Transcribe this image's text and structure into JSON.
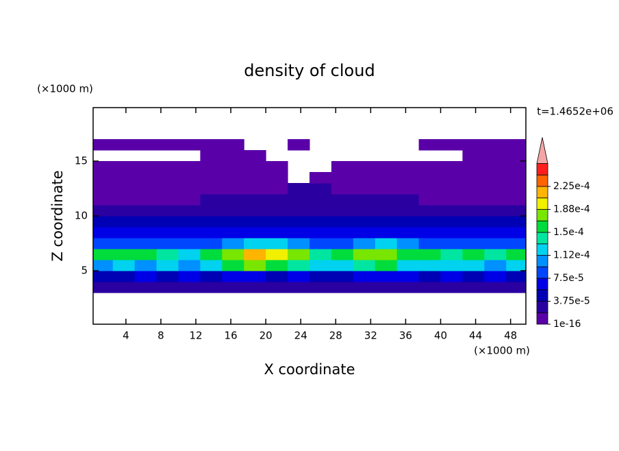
{
  "chart_data": {
    "type": "contour",
    "title": "density of cloud",
    "x_label": "X coordinate",
    "y_label": "Z coordinate",
    "x_unit": "(×1000 m)",
    "y_unit": "(×1000 m)",
    "annotation": "t=1.4652e+06",
    "xlim": [
      0.25,
      49.75
    ],
    "ylim": [
      0.125,
      19.875
    ],
    "xticks": [
      4,
      8,
      12,
      16,
      20,
      24,
      28,
      32,
      36,
      40,
      44,
      48
    ],
    "yticks": [
      5,
      10,
      15
    ],
    "x": [
      1.25,
      3.75,
      6.25,
      8.75,
      11.25,
      13.75,
      16.25,
      18.75,
      21.25,
      23.75,
      26.25,
      28.75,
      31.25,
      33.75,
      36.25,
      38.75,
      41.25,
      43.75,
      46.25,
      48.75
    ],
    "z": [
      3.5,
      4.5,
      5.5,
      6.5,
      7.5,
      8.5,
      9.5,
      10.5,
      11.5,
      12.5,
      13.5,
      14.5,
      15.5,
      16.5
    ],
    "values": [
      [
        2e-05,
        2e-05,
        2e-05,
        2e-05,
        2e-05,
        2e-05,
        2e-05,
        2e-05,
        2e-05,
        2e-05,
        2e-05,
        2e-05,
        2e-05,
        3e-05,
        2e-05,
        2e-05,
        2e-05,
        2e-05,
        2e-05,
        2e-05
      ],
      [
        5e-05,
        5e-05,
        6e-05,
        5e-05,
        6e-05,
        5e-05,
        6e-05,
        6e-05,
        5e-05,
        6e-05,
        5e-05,
        5e-05,
        6e-05,
        7e-05,
        6e-05,
        5e-05,
        6e-05,
        5e-05,
        6e-05,
        5e-05
      ],
      [
        0.00011,
        0.00012,
        0.00011,
        0.00012,
        0.00011,
        0.00013,
        0.00015,
        0.00017,
        0.00016,
        0.00014,
        0.00012,
        0.00013,
        0.00014,
        0.00015,
        0.00013,
        0.00012,
        0.00013,
        0.00012,
        0.00011,
        0.00012
      ],
      [
        0.00015,
        0.00016,
        0.00015,
        0.00014,
        0.00013,
        0.00015,
        0.00018,
        0.00021,
        0.0002,
        0.00017,
        0.00014,
        0.00016,
        0.00017,
        0.00018,
        0.00016,
        0.00015,
        0.00014,
        0.00015,
        0.00014,
        0.00015
      ],
      [
        9e-05,
        8e-05,
        9e-05,
        8e-05,
        8e-05,
        9e-05,
        0.0001,
        0.00012,
        0.00012,
        0.00011,
        8e-05,
        9e-05,
        0.00011,
        0.00012,
        0.0001,
        9e-05,
        8e-05,
        9e-05,
        8e-05,
        9e-05
      ],
      [
        6e-05,
        6e-05,
        7e-05,
        6e-05,
        6e-05,
        6e-05,
        7e-05,
        7e-05,
        7e-05,
        6e-05,
        6e-05,
        6e-05,
        7e-05,
        7e-05,
        6e-05,
        6e-05,
        6e-05,
        6e-05,
        6e-05,
        6e-05
      ],
      [
        4e-05,
        4e-05,
        4e-05,
        4e-05,
        4e-05,
        4e-05,
        4.5e-05,
        4.5e-05,
        4.5e-05,
        4e-05,
        4e-05,
        4e-05,
        4.5e-05,
        4.5e-05,
        4e-05,
        4e-05,
        4e-05,
        4e-05,
        4e-05,
        4e-05
      ],
      [
        2.5e-05,
        2.5e-05,
        2.5e-05,
        2.5e-05,
        2.5e-05,
        3e-05,
        3e-05,
        3e-05,
        3e-05,
        3e-05,
        3e-05,
        3e-05,
        3e-05,
        3e-05,
        2.5e-05,
        2.5e-05,
        2.5e-05,
        2.5e-05,
        2.5e-05,
        2.5e-05
      ],
      [
        1e-05,
        1e-05,
        1e-05,
        1e-05,
        1e-05,
        2e-05,
        2e-05,
        2.5e-05,
        2.5e-05,
        2.5e-05,
        2.5e-05,
        2.5e-05,
        2e-05,
        2e-05,
        2e-05,
        1e-05,
        1e-05,
        1e-05,
        1e-05,
        1e-05
      ],
      [
        1e-05,
        1e-05,
        1e-05,
        1e-05,
        1e-05,
        1e-05,
        1e-05,
        1e-05,
        1e-05,
        2e-05,
        2e-05,
        1e-05,
        1e-05,
        1e-05,
        1e-05,
        1e-05,
        1e-05,
        1e-05,
        1e-05,
        1e-05
      ],
      [
        1e-05,
        1e-05,
        1e-05,
        1e-05,
        1e-05,
        1e-05,
        1e-05,
        1e-05,
        1e-05,
        null,
        1e-05,
        1e-05,
        1e-05,
        1e-05,
        1e-05,
        1e-05,
        1e-05,
        1e-05,
        1e-05,
        1e-05
      ],
      [
        1e-05,
        1e-05,
        1e-05,
        1e-05,
        1e-05,
        1e-05,
        1e-05,
        1e-05,
        1e-05,
        null,
        null,
        1e-05,
        1e-05,
        1e-05,
        1e-05,
        1e-05,
        1e-05,
        1e-05,
        1e-05,
        1e-05
      ],
      [
        null,
        null,
        null,
        null,
        null,
        1e-05,
        1e-05,
        1e-05,
        null,
        null,
        null,
        null,
        null,
        null,
        null,
        null,
        null,
        1e-05,
        1e-05,
        1e-05
      ],
      [
        1e-05,
        1e-05,
        1e-05,
        1e-05,
        1e-05,
        1e-05,
        1e-05,
        null,
        null,
        1e-05,
        null,
        null,
        null,
        null,
        null,
        1e-05,
        1e-05,
        1e-05,
        1e-05,
        1e-05
      ]
    ],
    "levels": [
      1e-16,
      1.875e-05,
      3.75e-05,
      5.625e-05,
      7.5e-05,
      9.375e-05,
      0.0001125,
      0.00013125,
      0.00015,
      0.00016875,
      0.0001875,
      0.00020625,
      0.000225,
      0.00024375
    ],
    "colors": [
      "#5a00a8",
      "#2a00a0",
      "#0000b4",
      "#0000e6",
      "#0046ff",
      "#0090ff",
      "#00d2f0",
      "#00e6a0",
      "#00dc3c",
      "#78e600",
      "#f0f000",
      "#ffb400",
      "#ff6400"
    ],
    "top_color": "#ff1e1e",
    "extend_color": "#f4a6a6",
    "colorbar_ticks": [
      1e-16,
      {
        "value": 3.75e-05,
        "label": "3.75e-5"
      },
      {
        "value": 7.5e-05,
        "label": "7.5e-5"
      },
      {
        "value": 0.0001125,
        "label": "1.12e-4"
      },
      {
        "value": 0.00015,
        "label": "1.5e-4"
      },
      {
        "value": 0.0001875,
        "label": "1.88e-4"
      },
      {
        "value": 0.000225,
        "label": "2.25e-4"
      }
    ]
  }
}
